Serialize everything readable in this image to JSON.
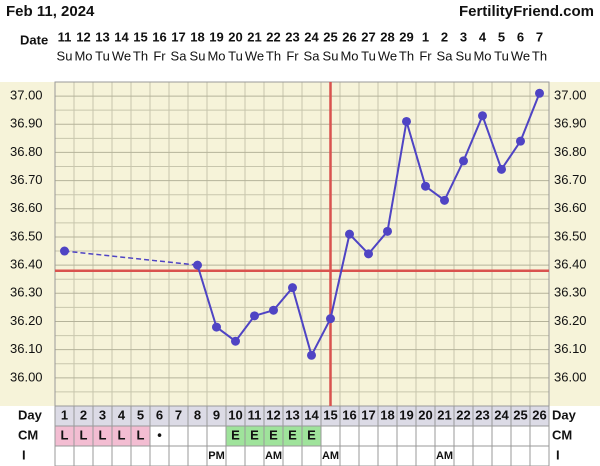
{
  "header": {
    "date": "Feb 11, 2024",
    "brand": "FertilityFriend.com"
  },
  "chart_data": {
    "type": "line",
    "row_labels": {
      "date": "Date",
      "day": "Day",
      "cm": "CM",
      "intercourse": "I"
    },
    "categories": [
      "1",
      "2",
      "3",
      "4",
      "5",
      "6",
      "7",
      "8",
      "9",
      "10",
      "11",
      "12",
      "13",
      "14",
      "15",
      "16",
      "17",
      "18",
      "19",
      "20",
      "21",
      "22",
      "23",
      "24",
      "25",
      "26"
    ],
    "dates": [
      "11",
      "12",
      "13",
      "14",
      "15",
      "16",
      "17",
      "18",
      "19",
      "20",
      "21",
      "22",
      "23",
      "24",
      "25",
      "26",
      "27",
      "28",
      "29",
      "1",
      "2",
      "3",
      "4",
      "5",
      "6",
      "7"
    ],
    "weekdays": [
      "Su",
      "Mo",
      "Tu",
      "We",
      "Th",
      "Fr",
      "Sa",
      "Su",
      "Mo",
      "Tu",
      "We",
      "Th",
      "Fr",
      "Sa",
      "Su",
      "Mo",
      "Tu",
      "We",
      "Th",
      "Fr",
      "Sa",
      "Su",
      "Mo",
      "Tu",
      "We",
      "Th"
    ],
    "series": [
      {
        "name": "Temperature",
        "color": "#4f44c4",
        "values": [
          36.45,
          null,
          null,
          null,
          null,
          null,
          null,
          36.4,
          36.18,
          36.13,
          36.22,
          36.24,
          36.32,
          36.08,
          36.21,
          36.51,
          36.44,
          36.52,
          36.91,
          36.68,
          36.63,
          36.77,
          36.93,
          36.74,
          36.84,
          37.01
        ]
      }
    ],
    "cm": [
      "L",
      "L",
      "L",
      "L",
      "L",
      "•",
      null,
      null,
      null,
      "E",
      "E",
      "E",
      "E",
      "E",
      null,
      null,
      null,
      null,
      null,
      null,
      null,
      null,
      null,
      null,
      null,
      null
    ],
    "cm_colors": {
      "L": "#f3bdd2",
      "E": "#9fe39b"
    },
    "intercourse": [
      null,
      null,
      null,
      null,
      null,
      null,
      null,
      null,
      "PM",
      null,
      null,
      "AM",
      null,
      null,
      "AM",
      null,
      null,
      null,
      null,
      null,
      "AM",
      null,
      null,
      null,
      null,
      null
    ],
    "coverline": 36.38,
    "coverline_color": "#d9534f",
    "ovulation_day": 15,
    "ylim": [
      35.9,
      37.05
    ],
    "yticks": [
      {
        "value": 36.0,
        "label": "36.00"
      },
      {
        "value": 36.1,
        "label": "36.10"
      },
      {
        "value": 36.2,
        "label": "36.20"
      },
      {
        "value": 36.3,
        "label": "36.30"
      },
      {
        "value": 36.4,
        "label": "36.40"
      },
      {
        "value": 36.5,
        "label": "36.50"
      },
      {
        "value": 36.6,
        "label": "36.60"
      },
      {
        "value": 36.7,
        "label": "36.70"
      },
      {
        "value": 36.8,
        "label": "36.80"
      },
      {
        "value": 36.9,
        "label": "36.90"
      },
      {
        "value": 37.0,
        "label": "37.00"
      }
    ],
    "yticks_minor": [
      35.95,
      36.05,
      36.15,
      36.25,
      36.35,
      36.45,
      36.55,
      36.65,
      36.75,
      36.85,
      36.95
    ],
    "grid": true
  }
}
